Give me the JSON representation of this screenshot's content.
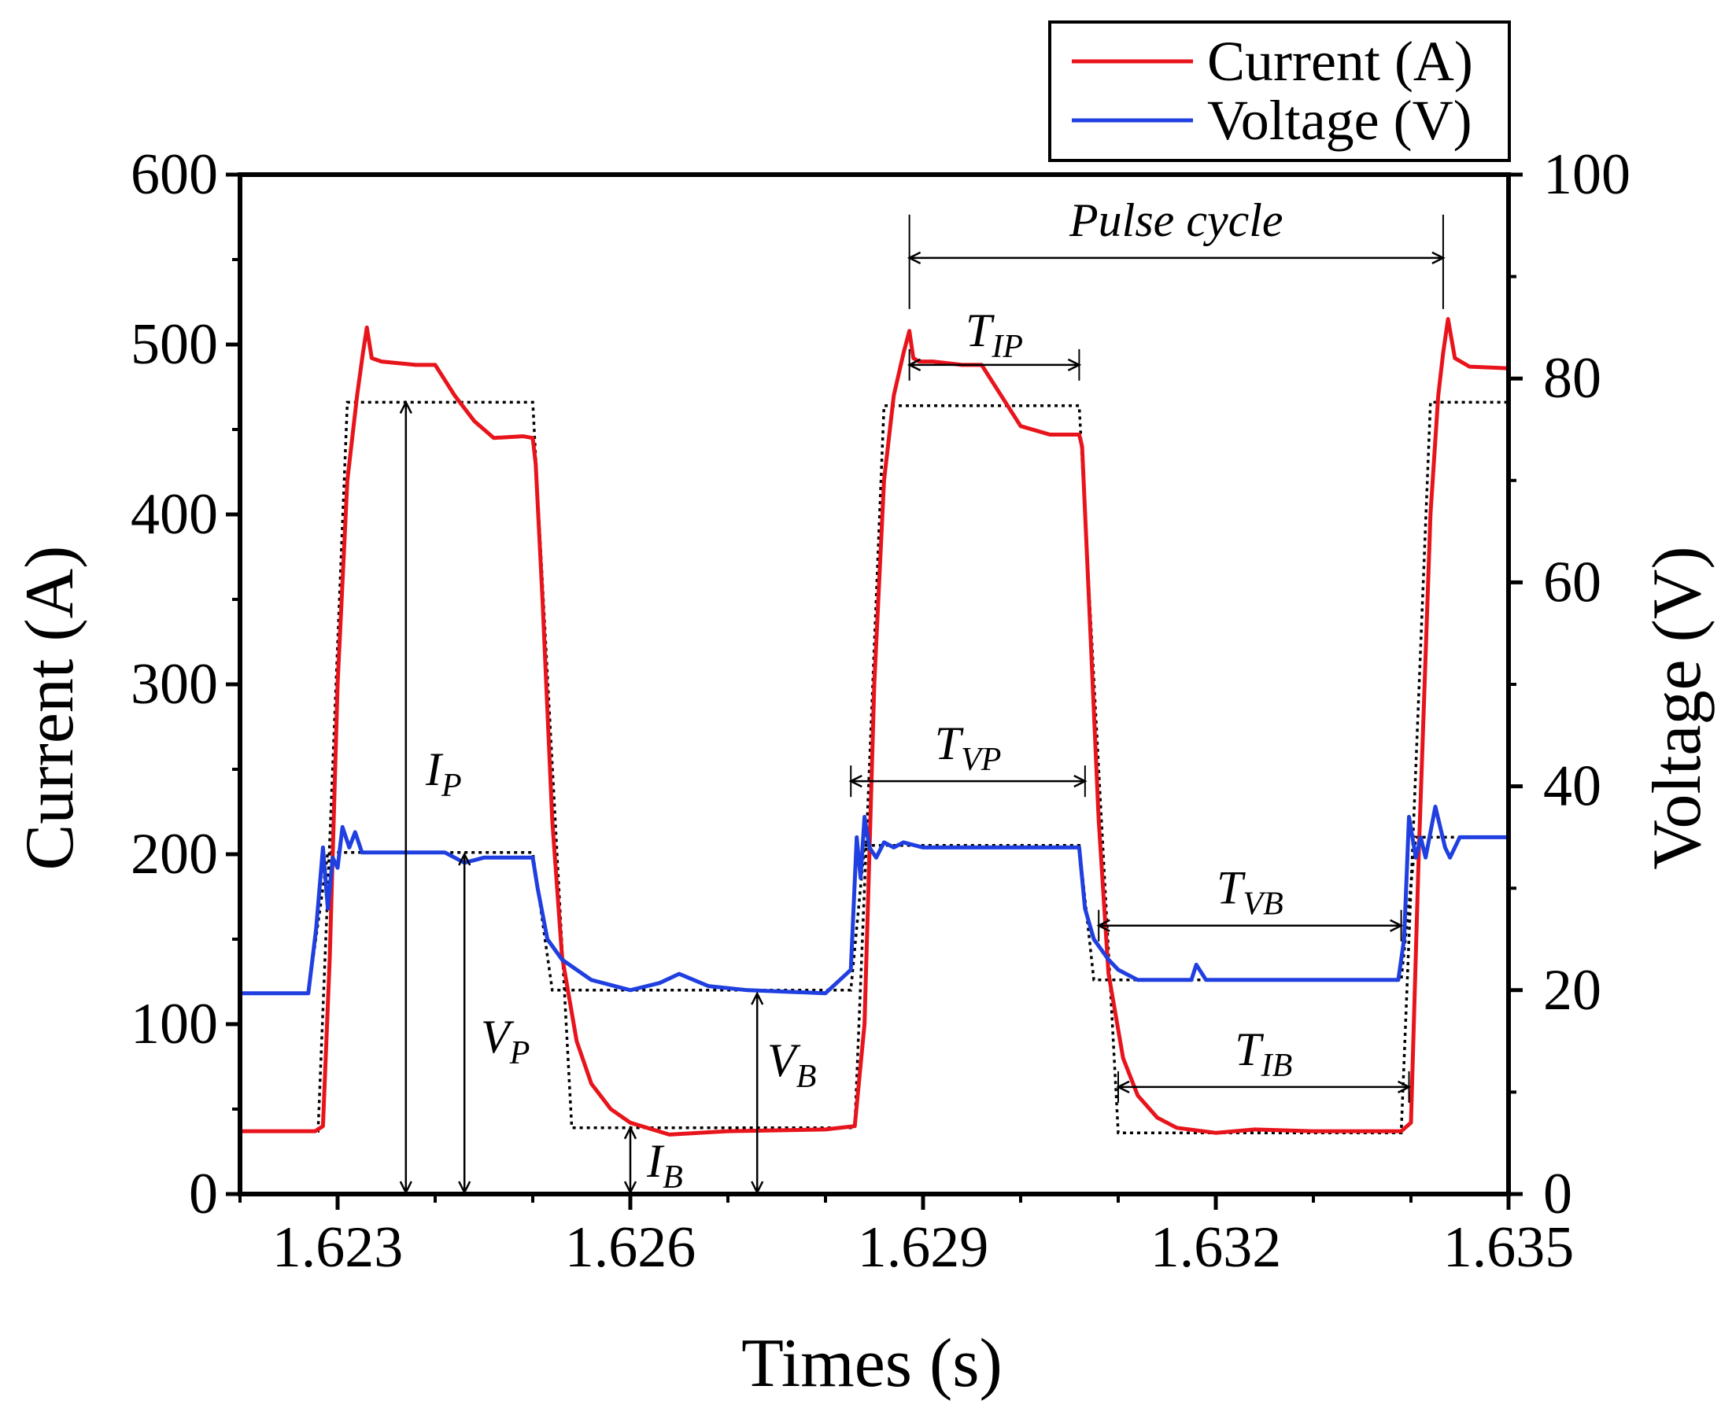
{
  "chart_data": {
    "type": "line",
    "title": "",
    "xlabel": "Times (s)",
    "ylabel_left": "Current (A)",
    "ylabel_right": "Voltage (V)",
    "xlim": [
      1.622,
      1.635
    ],
    "ylim_left": [
      0,
      600
    ],
    "ylim_right": [
      0,
      100
    ],
    "x_ticks": [
      1.623,
      1.626,
      1.629,
      1.632,
      1.635
    ],
    "x_tick_labels": [
      "1.623",
      "1.626",
      "1.629",
      "1.632",
      "1.635"
    ],
    "y_left_ticks": [
      0,
      100,
      200,
      300,
      400,
      500,
      600
    ],
    "y_left_tick_labels": [
      "0",
      "100",
      "200",
      "300",
      "400",
      "500",
      "600"
    ],
    "y_right_ticks": [
      0,
      20,
      40,
      60,
      80,
      100
    ],
    "y_right_tick_labels": [
      "0",
      "20",
      "40",
      "60",
      "80",
      "100"
    ],
    "grid": false,
    "legend_position": "top-right",
    "series": [
      {
        "name": "Current (A)",
        "axis": "left",
        "color": "#e8141c",
        "x": [
          1.622,
          1.62277,
          1.62285,
          1.62292,
          1.623,
          1.6231,
          1.6232,
          1.62326,
          1.6233,
          1.62335,
          1.62345,
          1.6238,
          1.624,
          1.6242,
          1.6244,
          1.6246,
          1.6249,
          1.625,
          1.62503,
          1.6251,
          1.6252,
          1.6253,
          1.62545,
          1.6256,
          1.6258,
          1.626,
          1.6264,
          1.627,
          1.628,
          1.6283,
          1.6284,
          1.6285,
          1.6286,
          1.6287,
          1.6288,
          1.62886,
          1.6289,
          1.62896,
          1.6291,
          1.6294,
          1.6296,
          1.6298,
          1.63,
          1.6303,
          1.6306,
          1.63063,
          1.6307,
          1.6308,
          1.6309,
          1.63105,
          1.6312,
          1.6314,
          1.6316,
          1.632,
          1.6324,
          1.633,
          1.6339,
          1.634,
          1.63408,
          1.6342,
          1.63428,
          1.63433,
          1.63438,
          1.63445,
          1.6346,
          1.635
        ],
        "values": [
          37,
          37,
          40,
          140,
          300,
          420,
          470,
          495,
          510,
          492,
          490,
          488,
          488,
          470,
          455,
          445,
          446,
          445,
          430,
          350,
          220,
          140,
          90,
          65,
          50,
          42,
          35,
          37,
          38,
          40,
          100,
          300,
          420,
          470,
          495,
          508,
          492,
          490,
          490,
          488,
          488,
          470,
          452,
          447,
          447,
          440,
          350,
          220,
          130,
          80,
          58,
          45,
          39,
          36,
          38,
          37,
          37,
          42,
          200,
          400,
          470,
          495,
          515,
          492,
          487,
          486
        ]
      },
      {
        "name": "Voltage (V)",
        "axis": "right",
        "color": "#1f3fe0",
        "x": [
          1.622,
          1.6227,
          1.62278,
          1.62285,
          1.6229,
          1.62295,
          1.623,
          1.62305,
          1.62312,
          1.62318,
          1.62325,
          1.6233,
          1.6234,
          1.6238,
          1.6241,
          1.6243,
          1.6245,
          1.6247,
          1.625,
          1.62505,
          1.62515,
          1.6253,
          1.6256,
          1.626,
          1.6263,
          1.6265,
          1.6268,
          1.6272,
          1.628,
          1.62826,
          1.62832,
          1.62836,
          1.6284,
          1.62845,
          1.62852,
          1.6286,
          1.6287,
          1.6288,
          1.629,
          1.6295,
          1.63,
          1.6305,
          1.6306,
          1.63066,
          1.63075,
          1.6309,
          1.631,
          1.6312,
          1.6315,
          1.63175,
          1.6318,
          1.6319,
          1.6325,
          1.633,
          1.63387,
          1.63393,
          1.63398,
          1.63405,
          1.6341,
          1.63415,
          1.63425,
          1.63435,
          1.6344,
          1.6345,
          1.6348,
          1.635
        ],
        "values": [
          19.7,
          19.7,
          26,
          34,
          28,
          33,
          32,
          36,
          34,
          35.5,
          33.5,
          33.5,
          33.5,
          33.5,
          33.5,
          32.5,
          33,
          33,
          33,
          30,
          25,
          23,
          21,
          20,
          20.7,
          21.6,
          20.4,
          20,
          19.7,
          22,
          35,
          31,
          37,
          34,
          33,
          34.5,
          34,
          34.5,
          34,
          34,
          34,
          34,
          34,
          28,
          25,
          23,
          22,
          21,
          21,
          21,
          22.5,
          21,
          21,
          21,
          21,
          25,
          37,
          33,
          35,
          33,
          38,
          34,
          33,
          35,
          35,
          35
        ]
      }
    ],
    "reference_traces": [
      {
        "name": "idealized current",
        "axis": "left",
        "style": "dotted",
        "x": [
          1.622,
          1.6228,
          1.6231,
          1.625,
          1.6254,
          1.6283,
          1.6286,
          1.6306,
          1.631,
          1.6339,
          1.6342,
          1.635
        ],
        "values": [
          37,
          37,
          466,
          466,
          39,
          39,
          464,
          464,
          36,
          36,
          466,
          466
        ]
      },
      {
        "name": "idealized voltage",
        "axis": "right",
        "style": "dotted",
        "x": [
          1.622,
          1.6227,
          1.6229,
          1.625,
          1.6252,
          1.62826,
          1.6284,
          1.6306,
          1.63075,
          1.6339,
          1.63405,
          1.635
        ],
        "values": [
          19.7,
          19.7,
          33.5,
          33.5,
          20,
          20,
          34.2,
          34.2,
          21,
          21,
          35,
          35
        ]
      }
    ],
    "legend": [
      "Current (A)",
      "Voltage (V)"
    ],
    "annotations": [
      {
        "text": "Pulse cycle",
        "from_x": 1.62886,
        "to_x": 1.63433,
        "at_y_left": 551
      },
      {
        "main": "T",
        "sub": "IP",
        "from_x": 1.62886,
        "to_x": 1.6306,
        "at_y_left": 488
      },
      {
        "main": "T",
        "sub": "VP",
        "from_x": 1.62826,
        "to_x": 1.63066,
        "at_y_left": 243
      },
      {
        "main": "T",
        "sub": "VB",
        "from_x": 1.6308,
        "to_x": 1.6339,
        "at_y_left": 158
      },
      {
        "main": "T",
        "sub": "IB",
        "from_x": 1.631,
        "to_x": 1.63398,
        "at_y_left": 63
      },
      {
        "main": "I",
        "sub": "P",
        "at_x": 1.6237,
        "from_y_left": 0,
        "to_y_left": 466
      },
      {
        "main": "V",
        "sub": "P",
        "at_x": 1.6243,
        "from_y_left": 0,
        "to_y_left": 200
      },
      {
        "main": "V",
        "sub": "B",
        "at_x": 1.6273,
        "from_y_left": 0,
        "to_y_left": 118
      },
      {
        "main": "I",
        "sub": "B",
        "at_x": 1.626,
        "from_y_left": 0,
        "to_y_left": 39
      }
    ]
  }
}
